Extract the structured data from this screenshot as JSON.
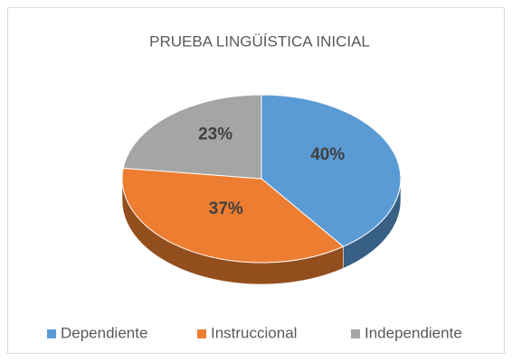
{
  "chart_data": {
    "type": "pie",
    "title": "PRUEBA LINGÜÍSTICA INICIAL",
    "categories": [
      "Dependiente",
      "Instruccional",
      "Independiente"
    ],
    "values": [
      40,
      37,
      23
    ],
    "value_labels": [
      "40%",
      "37%",
      "23%"
    ],
    "colors": [
      "#5b9bd5",
      "#ed7d31",
      "#a5a5a5"
    ],
    "legend": "bottom"
  }
}
